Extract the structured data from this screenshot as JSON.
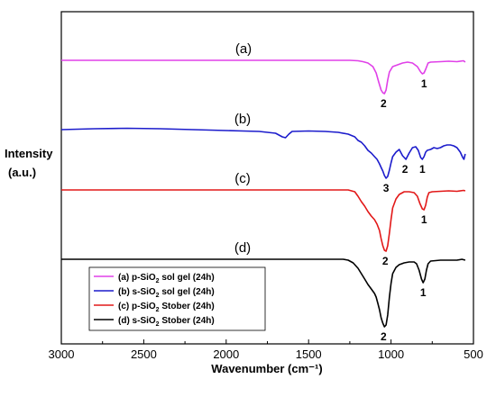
{
  "chart_data": {
    "type": "line",
    "xlabel": "Wavenumber (cm⁻¹)",
    "ylabel_line1": "Intensity",
    "ylabel_line2": "(a.u.)",
    "xlim": [
      3000,
      500
    ],
    "x_reversed": true,
    "xticks": [
      3000,
      2500,
      2000,
      1500,
      1000,
      500
    ],
    "y_units": "arbitrary (relative transmittance, curves offset)",
    "grid": false,
    "legend_position": "bottom-left",
    "series": [
      {
        "id": "a",
        "curve_label": "(a)",
        "legend_prefix": "(a) p-SiO",
        "legend_suffix": " sol gel (24h)",
        "color": "#e040e8",
        "baseline": 0,
        "points": [
          [
            3000,
            0
          ],
          [
            2600,
            0
          ],
          [
            2200,
            0
          ],
          [
            1800,
            0
          ],
          [
            1400,
            0
          ],
          [
            1250,
            0
          ],
          [
            1200,
            -0.5
          ],
          [
            1170,
            -1.5
          ],
          [
            1140,
            -3
          ],
          [
            1110,
            -7
          ],
          [
            1090,
            -14
          ],
          [
            1075,
            -24
          ],
          [
            1060,
            -33
          ],
          [
            1050,
            -36
          ],
          [
            1040,
            -37
          ],
          [
            1030,
            -33
          ],
          [
            1020,
            -22
          ],
          [
            1010,
            -13
          ],
          [
            990,
            -7
          ],
          [
            960,
            -5
          ],
          [
            930,
            -3
          ],
          [
            900,
            -2
          ],
          [
            870,
            -3
          ],
          [
            840,
            -7
          ],
          [
            820,
            -13
          ],
          [
            810,
            -15
          ],
          [
            800,
            -14
          ],
          [
            790,
            -10
          ],
          [
            775,
            -3
          ],
          [
            760,
            -2
          ],
          [
            700,
            -1.5
          ],
          [
            650,
            -1
          ],
          [
            600,
            -1.5
          ],
          [
            560,
            -0.5
          ],
          [
            550,
            -2
          ]
        ],
        "peaks": [
          {
            "x": 800,
            "label": "1"
          },
          {
            "x": 1045,
            "label": "2"
          }
        ]
      },
      {
        "id": "b",
        "curve_label": "(b)",
        "legend_prefix": "(b) s-SiO",
        "legend_suffix": " sol gel (24h)",
        "color": "#1c1ccc",
        "baseline": 0,
        "points": [
          [
            3000,
            0
          ],
          [
            2800,
            1
          ],
          [
            2600,
            1.5
          ],
          [
            2400,
            1
          ],
          [
            2200,
            0
          ],
          [
            2000,
            -1
          ],
          [
            1900,
            -1.5
          ],
          [
            1800,
            -2
          ],
          [
            1700,
            -4
          ],
          [
            1660,
            -8
          ],
          [
            1640,
            -9
          ],
          [
            1620,
            -5
          ],
          [
            1600,
            -2
          ],
          [
            1500,
            -1.5
          ],
          [
            1400,
            -2
          ],
          [
            1320,
            -3
          ],
          [
            1260,
            -5
          ],
          [
            1220,
            -8
          ],
          [
            1200,
            -12
          ],
          [
            1180,
            -14
          ],
          [
            1160,
            -18
          ],
          [
            1140,
            -23
          ],
          [
            1120,
            -26
          ],
          [
            1100,
            -30
          ],
          [
            1085,
            -33
          ],
          [
            1070,
            -38
          ],
          [
            1060,
            -42
          ],
          [
            1050,
            -46
          ],
          [
            1040,
            -51
          ],
          [
            1030,
            -54
          ],
          [
            1020,
            -52
          ],
          [
            1010,
            -45
          ],
          [
            1000,
            -37
          ],
          [
            990,
            -30
          ],
          [
            970,
            -25
          ],
          [
            950,
            -22
          ],
          [
            930,
            -29
          ],
          [
            910,
            -33
          ],
          [
            890,
            -26
          ],
          [
            870,
            -20
          ],
          [
            850,
            -19
          ],
          [
            835,
            -23
          ],
          [
            820,
            -31
          ],
          [
            810,
            -33
          ],
          [
            800,
            -30
          ],
          [
            790,
            -25
          ],
          [
            780,
            -23
          ],
          [
            760,
            -22
          ],
          [
            740,
            -20
          ],
          [
            720,
            -21
          ],
          [
            700,
            -20
          ],
          [
            680,
            -18
          ],
          [
            660,
            -17
          ],
          [
            640,
            -17
          ],
          [
            620,
            -18
          ],
          [
            600,
            -20
          ],
          [
            580,
            -25
          ],
          [
            565,
            -31
          ],
          [
            558,
            -33
          ],
          [
            550,
            -27
          ]
        ],
        "peaks": [
          {
            "x": 810,
            "label": "1"
          },
          {
            "x": 915,
            "label": "2"
          },
          {
            "x": 1030,
            "label": "3"
          }
        ]
      },
      {
        "id": "c",
        "curve_label": "(c)",
        "legend_prefix": "(c) p-SiO",
        "legend_suffix": " Stober (24h)",
        "color": "#e21818",
        "baseline": 0,
        "points": [
          [
            3000,
            0
          ],
          [
            2600,
            0
          ],
          [
            2200,
            0
          ],
          [
            1800,
            0
          ],
          [
            1400,
            0
          ],
          [
            1260,
            0
          ],
          [
            1220,
            -2
          ],
          [
            1200,
            -7
          ],
          [
            1180,
            -13
          ],
          [
            1160,
            -18
          ],
          [
            1140,
            -24
          ],
          [
            1120,
            -29
          ],
          [
            1100,
            -33
          ],
          [
            1085,
            -38
          ],
          [
            1070,
            -45
          ],
          [
            1060,
            -54
          ],
          [
            1050,
            -62
          ],
          [
            1040,
            -67
          ],
          [
            1030,
            -68
          ],
          [
            1020,
            -62
          ],
          [
            1010,
            -48
          ],
          [
            1000,
            -33
          ],
          [
            990,
            -20
          ],
          [
            970,
            -10
          ],
          [
            950,
            -5
          ],
          [
            920,
            -2
          ],
          [
            890,
            -2
          ],
          [
            860,
            -3
          ],
          [
            840,
            -7
          ],
          [
            825,
            -15
          ],
          [
            810,
            -21
          ],
          [
            800,
            -22
          ],
          [
            790,
            -17
          ],
          [
            780,
            -8
          ],
          [
            770,
            -3
          ],
          [
            750,
            -2
          ],
          [
            700,
            -1.5
          ],
          [
            650,
            -1
          ],
          [
            600,
            -1.5
          ],
          [
            560,
            -0.5
          ],
          [
            550,
            -1
          ]
        ],
        "peaks": [
          {
            "x": 800,
            "label": "1"
          },
          {
            "x": 1035,
            "label": "2"
          }
        ]
      },
      {
        "id": "d",
        "curve_label": "(d)",
        "legend_prefix": "(d) s-SiO",
        "legend_suffix": " Stober (24h)",
        "color": "#000000",
        "baseline": 0,
        "points": [
          [
            3000,
            0
          ],
          [
            2600,
            0
          ],
          [
            2200,
            0
          ],
          [
            1800,
            0
          ],
          [
            1400,
            0
          ],
          [
            1290,
            0
          ],
          [
            1260,
            -1
          ],
          [
            1230,
            -4
          ],
          [
            1200,
            -10
          ],
          [
            1180,
            -16
          ],
          [
            1160,
            -22
          ],
          [
            1140,
            -28
          ],
          [
            1120,
            -33
          ],
          [
            1100,
            -38
          ],
          [
            1090,
            -42
          ],
          [
            1080,
            -49
          ],
          [
            1070,
            -56
          ],
          [
            1060,
            -65
          ],
          [
            1050,
            -71
          ],
          [
            1040,
            -75
          ],
          [
            1030,
            -73
          ],
          [
            1020,
            -62
          ],
          [
            1010,
            -42
          ],
          [
            1000,
            -27
          ],
          [
            990,
            -16
          ],
          [
            970,
            -9
          ],
          [
            950,
            -6
          ],
          [
            920,
            -4
          ],
          [
            890,
            -3
          ],
          [
            860,
            -3
          ],
          [
            845,
            -5
          ],
          [
            830,
            -12
          ],
          [
            815,
            -22
          ],
          [
            805,
            -26
          ],
          [
            795,
            -22
          ],
          [
            785,
            -12
          ],
          [
            775,
            -5
          ],
          [
            760,
            -2
          ],
          [
            700,
            -1
          ],
          [
            650,
            -1
          ],
          [
            600,
            -1
          ],
          [
            570,
            0
          ],
          [
            550,
            -1
          ]
        ],
        "peaks": [
          {
            "x": 805,
            "label": "1"
          },
          {
            "x": 1045,
            "label": "2"
          }
        ]
      }
    ]
  }
}
